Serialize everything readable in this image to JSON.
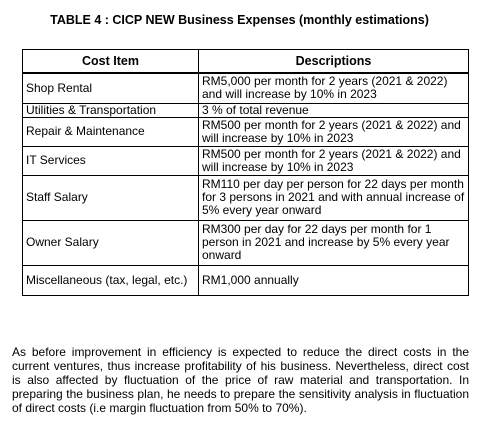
{
  "table": {
    "caption": "TABLE 4 : CICP NEW Business Expenses (monthly estimations)",
    "headers": [
      "Cost Item",
      "Descriptions"
    ],
    "rows": [
      {
        "item": "Shop Rental",
        "description": "RM5,000 per month for 2 years (2021 & 2022) and will increase by 10% in 2023"
      },
      {
        "item": "Utilities & Transportation",
        "description": "3 % of total revenue"
      },
      {
        "item": "Repair & Maintenance",
        "description": "RM500 per month for 2 years (2021 & 2022) and will increase by 10% in 2023"
      },
      {
        "item": "IT Services",
        "description": "RM500 per month for 2 years (2021 & 2022) and will increase by 10% in 2023"
      },
      {
        "item": "Staff Salary",
        "description": "RM110 per day per person for 22 days per month for 3 persons in 2021 and with annual increase of 5% every year onward"
      },
      {
        "item": "Owner Salary",
        "description": "RM300 per day for 22 days per month for 1 person in 2021 and increase by 5% every year onward"
      },
      {
        "item": "Miscellaneous (tax, legal, etc.)",
        "description": "RM1,000 annually"
      }
    ]
  },
  "paragraph": "As before improvement in efficiency is expected to reduce the direct costs in the current ventures, thus increase profitability of his business. Nevertheless, direct cost is also affected by fluctuation of the price of raw material and transportation. In preparing the business plan, he needs to prepare the sensitivity analysis in fluctuation of direct costs (i.e margin fluctuation from 50% to 70%)."
}
